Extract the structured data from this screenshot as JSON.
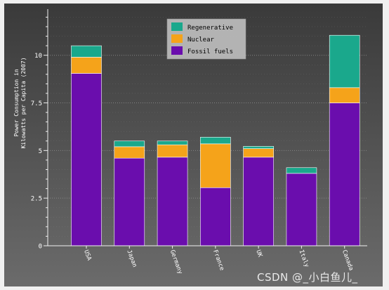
{
  "chart_data": {
    "type": "bar",
    "stacked": true,
    "title": "",
    "xlabel": "",
    "ylabel": "Power Consumption in\nKilowatts per Capita (2007)",
    "categories": [
      "USA",
      "Japan",
      "Germany",
      "France",
      "UK",
      "Italy",
      "Canada"
    ],
    "series": [
      {
        "name": "Fossil fuels",
        "color": "#6a0dad",
        "values": [
          9.05,
          4.6,
          4.65,
          3.05,
          4.65,
          3.8,
          7.5
        ]
      },
      {
        "name": "Nuclear",
        "color": "#f5a31a",
        "values": [
          0.85,
          0.6,
          0.65,
          2.3,
          0.45,
          0.0,
          0.8
        ]
      },
      {
        "name": "Regenerative",
        "color": "#1aa88c",
        "values": [
          0.6,
          0.3,
          0.2,
          0.35,
          0.12,
          0.3,
          2.75
        ]
      }
    ],
    "yticks": [
      0,
      2.5,
      5,
      7.5,
      10
    ],
    "ytick_labels": [
      "0",
      "2.5",
      "5",
      "7.5",
      "10"
    ],
    "ylim": [
      0,
      12.2
    ],
    "grid": true,
    "legend_position": "top-center",
    "legend_order": [
      "Regenerative",
      "Nuclear",
      "Fossil fuels"
    ],
    "colors": {
      "background_top": "#3a3a3a",
      "background_bottom": "#6b6b6b",
      "grid": "#8a8a8a",
      "axis": "#f0f0f0",
      "bar_outline": "#ffffff"
    }
  },
  "watermark": "CSDN @_小白鱼儿_"
}
